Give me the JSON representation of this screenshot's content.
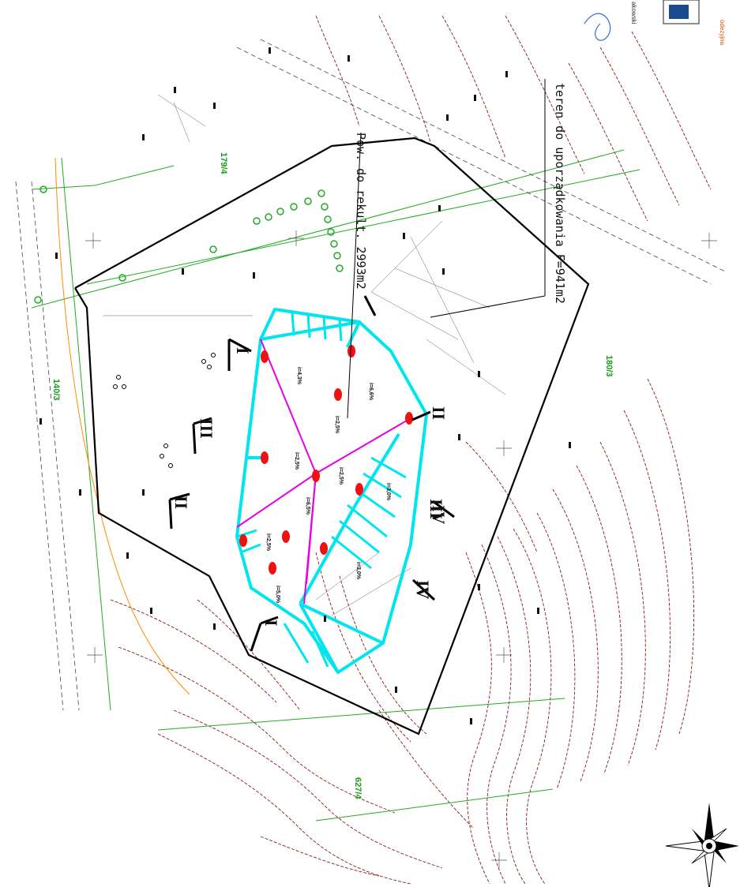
{
  "annotations": {
    "area_reclamation": "Pow. do rekult. 2993m2",
    "area_ordering": "teren do uporządkowania F=941m2"
  },
  "parcels": [
    "179/4",
    "180/3",
    "140/3",
    "627/4"
  ],
  "slopes": [
    "i=4,3%",
    "i=6,6%",
    "i=2,5%",
    "i=2,5%",
    "i=2,5%",
    "i=6,5%",
    "i=3,0%",
    "i=2,5%",
    "i=3,0%",
    "i=5,0%"
  ],
  "sections": [
    "I",
    "II",
    "III",
    "IV",
    "II",
    "III",
    "IV",
    "I"
  ],
  "corner": {
    "text_top": "odezyjna",
    "text_mid": "akowski"
  },
  "colors": {
    "boundary": "#000000",
    "reclamation": "#00e5ee",
    "drainage": "#e600e6",
    "wells": "#ee1111",
    "contours": "#8b1a1a",
    "parcel_lines": "#22aa22",
    "road_axis": "#ff8c00"
  },
  "icons": {
    "north_arrow": "compass-rose-icon"
  }
}
